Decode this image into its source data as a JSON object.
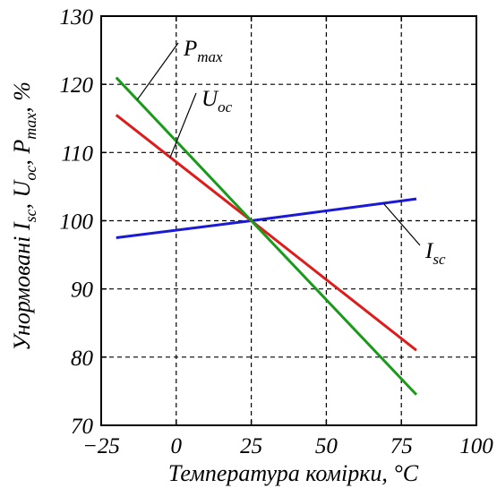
{
  "chart_data": {
    "type": "line",
    "xlabel": "Температура комірки, °C",
    "ylabel_parts": [
      "Унормовані ",
      "I",
      "sc",
      ", ",
      "U",
      "oc",
      ", ",
      "P",
      "max",
      ", %"
    ],
    "xlim": [
      -25,
      100
    ],
    "ylim": [
      70,
      130
    ],
    "xticks": [
      -25,
      0,
      25,
      50,
      75,
      100
    ],
    "xtick_labels": [
      "−25",
      "0",
      "25",
      "50",
      "75",
      "100"
    ],
    "yticks": [
      70,
      80,
      90,
      100,
      110,
      120,
      130
    ],
    "ytick_labels": [
      "70",
      "80",
      "90",
      "100",
      "110",
      "120",
      "130"
    ],
    "grid": true,
    "series": [
      {
        "name": "Isc",
        "label_main": "I",
        "label_sub": "sc",
        "color": "#1a1ad6",
        "x": [
          -20,
          25,
          80
        ],
        "y": [
          97.5,
          100,
          103.2
        ]
      },
      {
        "name": "Uoc",
        "label_main": "U",
        "label_sub": "oc",
        "color": "#dd1c1c",
        "x": [
          -20,
          25,
          80
        ],
        "y": [
          115.5,
          100,
          81
        ]
      },
      {
        "name": "Pmax",
        "label_main": "P",
        "label_sub": "max",
        "color": "#1a9a1a",
        "x": [
          -20,
          25,
          80
        ],
        "y": [
          121,
          100,
          74.5
        ]
      }
    ]
  }
}
